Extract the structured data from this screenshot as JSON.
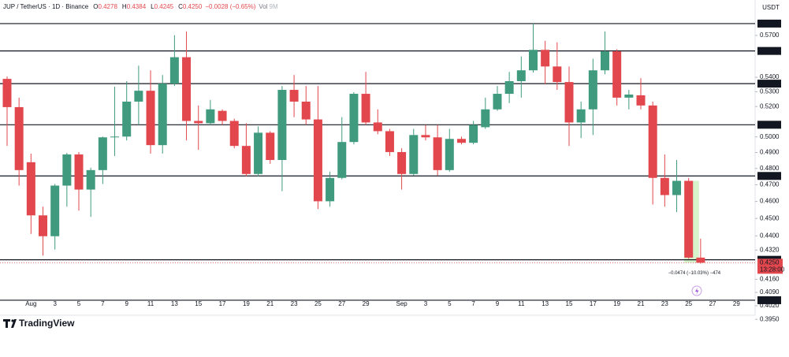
{
  "chart_data": {
    "type": "candlestick",
    "title": "JUP / TetherUS · 1D · Binance",
    "header_ohlc": [
      {
        "key": "O",
        "value": "0.4278"
      },
      {
        "key": "H",
        "value": "0.4384"
      },
      {
        "key": "L",
        "value": "0.4245"
      },
      {
        "key": "C",
        "value": "0.4250"
      }
    ],
    "change": "−0.0028 (−0.65%)",
    "volume_label": "Vol",
    "volume": "9M",
    "currency": "USDT",
    "log_scale": true,
    "grid": false,
    "up_color": "#3f9a7e",
    "down_color": "#e2474d",
    "level_color": "#131722",
    "categories": [
      null,
      null,
      "Aug",
      null,
      "3",
      null,
      "5",
      null,
      "7",
      null,
      "9",
      null,
      "11",
      null,
      "13",
      null,
      "15",
      null,
      "17",
      null,
      "19",
      null,
      "21",
      null,
      "23",
      null,
      "25",
      null,
      "27",
      null,
      "29",
      null,
      null,
      "Sep",
      null,
      "3",
      null,
      "5",
      null,
      "7",
      null,
      "9",
      null,
      "11",
      null,
      "13",
      null,
      "15",
      null,
      "17",
      null,
      "19",
      null,
      "21",
      null,
      "23",
      null,
      "25",
      null,
      "27",
      null,
      "29"
    ],
    "open": [
      0.5389,
      0.5196,
      0.4839,
      0.4518,
      0.4398,
      0.4695,
      0.4888,
      0.4671,
      0.479,
      0.4997,
      0.5002,
      0.5233,
      0.5307,
      0.4947,
      0.5356,
      0.5542,
      0.5104,
      0.5089,
      0.5171,
      0.5104,
      0.4942,
      0.4766,
      0.5027,
      0.4853,
      0.5313,
      0.5233,
      0.5114,
      0.4601,
      0.4742,
      0.4967,
      0.5286,
      0.5094,
      0.5037,
      0.4903,
      0.4766,
      0.5012,
      0.4997,
      0.479,
      0.4987,
      0.4962,
      0.5063,
      0.5181,
      0.5286,
      0.5373,
      0.5449,
      0.5595,
      0.5476,
      0.5367,
      0.5094,
      0.5181,
      0.5449,
      0.5584,
      0.526,
      0.5276,
      0.5207,
      0.4742,
      0.4638,
      0.4724,
      0.4278,
      null,
      null,
      null
    ],
    "high": [
      0.5405,
      0.526,
      0.4893,
      0.4569,
      0.4705,
      0.4898,
      0.4903,
      0.4805,
      0.5002,
      0.5335,
      0.5373,
      0.5482,
      0.5449,
      0.5416,
      0.5702,
      0.573,
      0.5207,
      0.5244,
      0.5181,
      0.5119,
      0.5089,
      0.5068,
      0.5037,
      0.534,
      0.5416,
      0.534,
      0.534,
      0.478,
      0.5129,
      0.5297,
      0.5438,
      0.5181,
      0.5052,
      0.4927,
      0.5052,
      0.5078,
      0.5078,
      0.5052,
      0.5002,
      0.5104,
      0.526,
      0.534,
      0.5438,
      0.5548,
      0.5788,
      0.5661,
      0.565,
      0.5476,
      0.5233,
      0.5531,
      0.573,
      0.56,
      0.5313,
      0.5394,
      0.5233,
      0.4888,
      0.4853,
      0.4742,
      0.4384,
      null,
      null,
      null
    ],
    "low": [
      0.4942,
      0.4695,
      0.4411,
      0.4289,
      0.4323,
      0.4569,
      0.4546,
      0.4509,
      0.4705,
      0.4878,
      0.4977,
      0.5078,
      0.4893,
      0.4893,
      0.534,
      0.4977,
      0.4917,
      0.5078,
      0.5078,
      0.4927,
      0.4752,
      0.4752,
      0.4829,
      0.4661,
      0.5129,
      0.5078,
      0.4555,
      0.4569,
      0.4733,
      0.4952,
      0.5078,
      0.5017,
      0.4878,
      0.4671,
      0.4756,
      0.4977,
      0.4756,
      0.478,
      0.4952,
      0.4952,
      0.5052,
      0.5171,
      0.5223,
      0.526,
      0.5433,
      0.5351,
      0.5313,
      0.4942,
      0.4992,
      0.5012,
      0.5421,
      0.5207,
      0.5181,
      0.5181,
      0.4582,
      0.4569,
      0.4537,
      0.4271,
      0.4245,
      null,
      null,
      null
    ],
    "close": [
      0.5196,
      0.479,
      0.4518,
      0.4398,
      0.4695,
      0.4888,
      0.4671,
      0.479,
      0.4997,
      0.5002,
      0.5233,
      0.5307,
      0.4947,
      0.5356,
      0.5542,
      0.5104,
      0.5089,
      0.5181,
      0.5104,
      0.4942,
      0.4766,
      0.5027,
      0.4853,
      0.5313,
      0.5233,
      0.5114,
      0.4601,
      0.4742,
      0.4967,
      0.5286,
      0.5094,
      0.5037,
      0.4903,
      0.4766,
      0.5012,
      0.4997,
      0.479,
      0.4987,
      0.4962,
      0.5078,
      0.5181,
      0.5286,
      0.5373,
      0.5449,
      0.5595,
      0.5476,
      0.5367,
      0.5094,
      0.5181,
      0.5449,
      0.5584,
      0.526,
      0.5281,
      0.5207,
      0.4742,
      0.4638,
      0.4724,
      0.4278,
      0.425,
      null,
      null,
      null
    ],
    "ylim": [
      0.3939,
      0.5967
    ],
    "yticks": [
      {
        "value": 0.57,
        "label": "0.5700"
      },
      {
        "value": 0.54,
        "label": "0.5400"
      },
      {
        "value": 0.53,
        "label": "0.5300"
      },
      {
        "value": 0.52,
        "label": "0.5200"
      },
      {
        "value": 0.5,
        "label": "0.5000"
      },
      {
        "value": 0.49,
        "label": "0.4900"
      },
      {
        "value": 0.48,
        "label": "0.4800"
      },
      {
        "value": 0.47,
        "label": "0.4700"
      },
      {
        "value": 0.46,
        "label": "0.4600"
      },
      {
        "value": 0.45,
        "label": "0.4500"
      },
      {
        "value": 0.44,
        "label": "0.4400"
      },
      {
        "value": 0.432,
        "label": "0.4320"
      },
      {
        "value": 0.416,
        "label": "0.4160"
      },
      {
        "value": 0.409,
        "label": "0.4090"
      },
      {
        "value": 0.402,
        "label": "0.4020"
      },
      {
        "value": 0.395,
        "label": "0.3950"
      }
    ],
    "levels": [
      0.5788,
      0.5587,
      0.5356,
      0.5079,
      0.4754,
      0.4266,
      0.4049
    ],
    "last_price": {
      "value": 0.425,
      "label": "0.4250"
    },
    "countdown": "13:28:00",
    "measure": {
      "from": 0.4724,
      "to": 0.425,
      "label": "−0.0474 (−10.03%) −474",
      "color": "#b7eaa0"
    }
  },
  "footer": {
    "brand": "TradingView"
  }
}
